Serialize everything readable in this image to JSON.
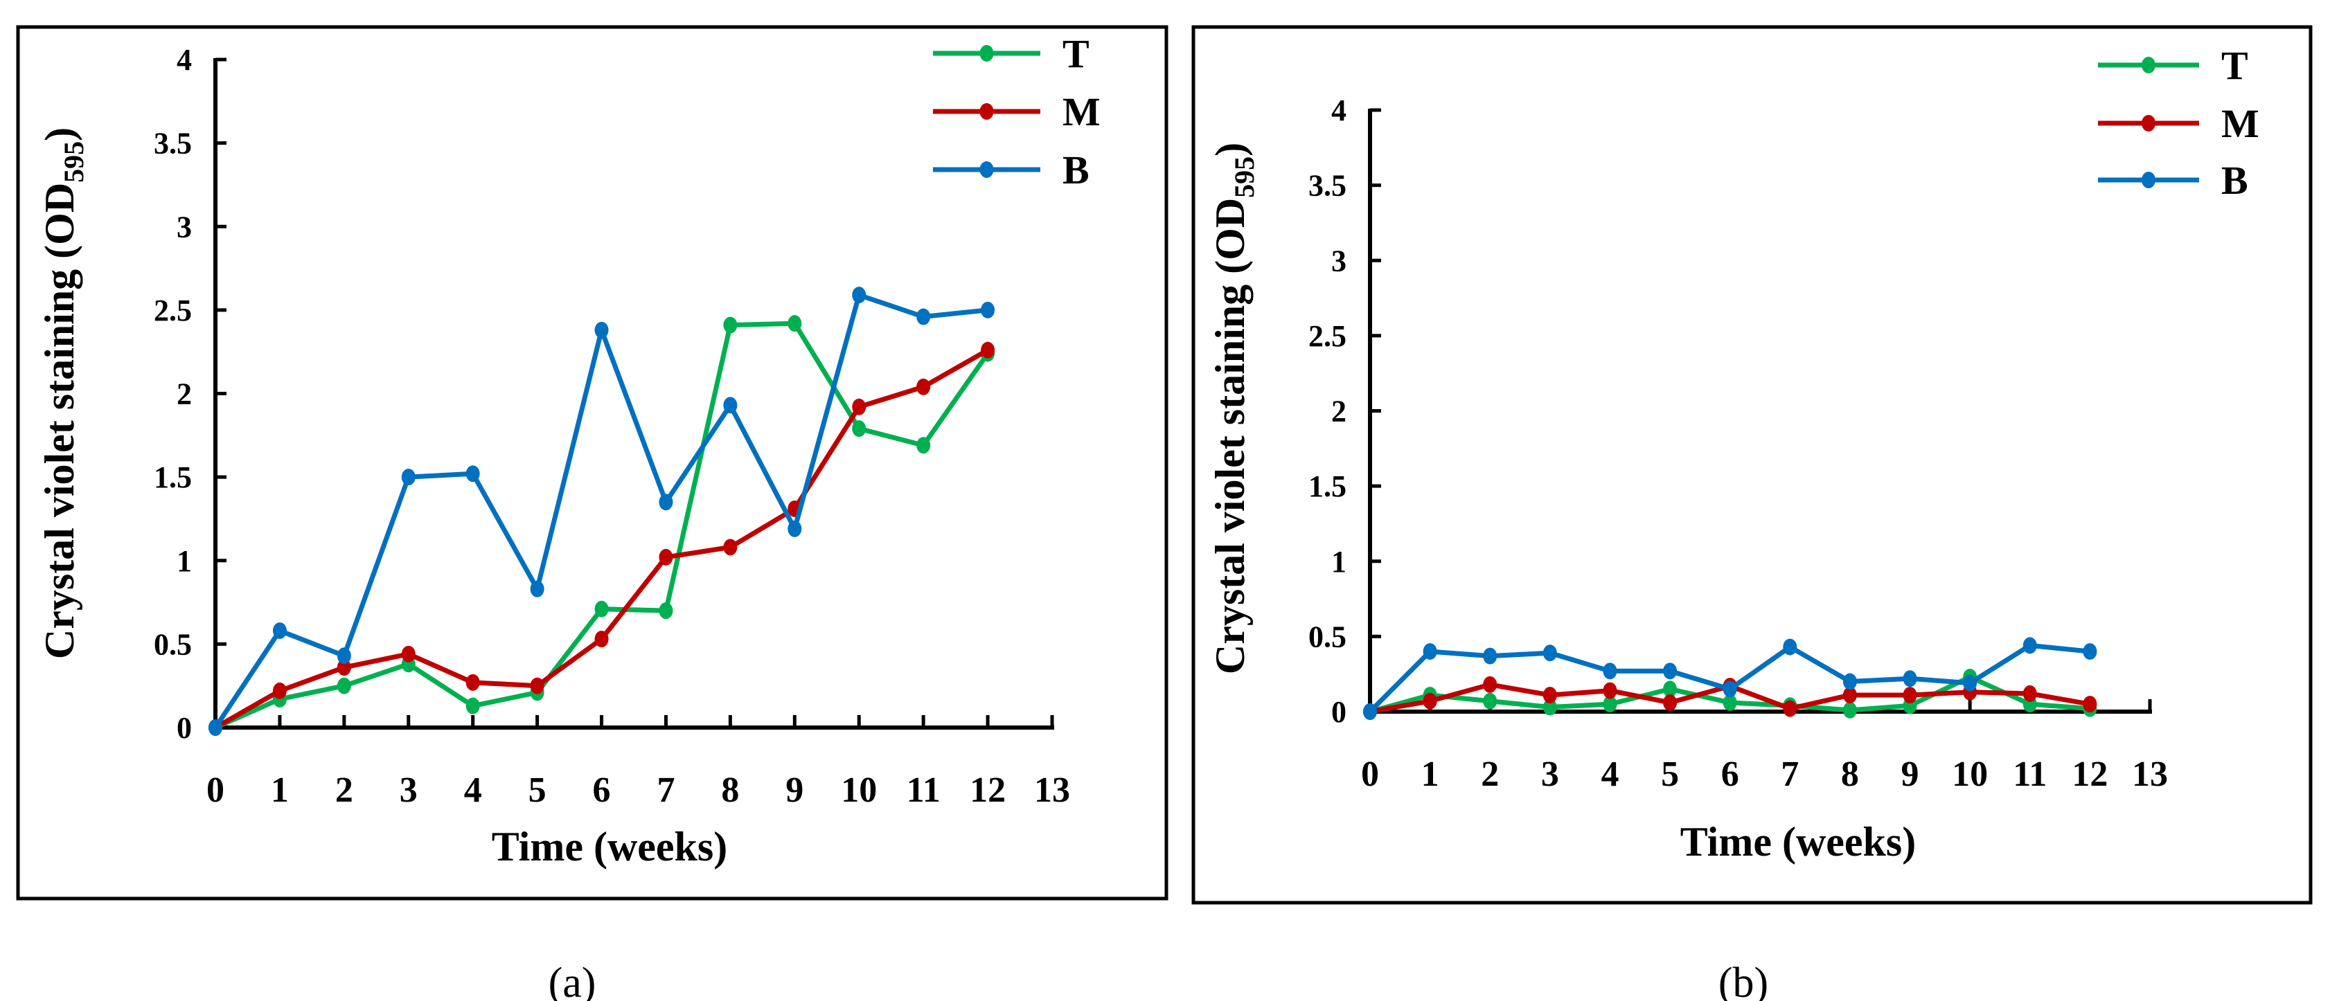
{
  "chart_data": [
    {
      "type": "line",
      "caption": "(a)",
      "xlabel": "Time (weeks)",
      "ylabel_main": "Crystal violet staining (OD",
      "ylabel_sub": "595",
      "ylabel_end": ")",
      "xlim": [
        0,
        13
      ],
      "ylim": [
        0,
        4
      ],
      "x_ticks": [
        "0",
        "1",
        "2",
        "3",
        "4",
        "5",
        "6",
        "7",
        "8",
        "9",
        "10",
        "11",
        "12",
        "13"
      ],
      "y_ticks": [
        "0",
        "0.5",
        "1",
        "1.5",
        "2",
        "2.5",
        "3",
        "3.5",
        "4"
      ],
      "legend_position": "top-right",
      "x": [
        0,
        1,
        2,
        3,
        4,
        5,
        6,
        7,
        8,
        9,
        10,
        11,
        12
      ],
      "series": [
        {
          "name": "T",
          "color": "#00B050",
          "values": [
            0,
            0.17,
            0.25,
            0.38,
            0.13,
            0.21,
            0.71,
            0.7,
            2.41,
            2.42,
            1.79,
            1.69,
            2.24
          ]
        },
        {
          "name": "M",
          "color": "#C00000",
          "values": [
            0,
            0.22,
            0.36,
            0.44,
            0.27,
            0.25,
            0.53,
            1.02,
            1.08,
            1.31,
            1.92,
            2.04,
            2.26
          ]
        },
        {
          "name": "B",
          "color": "#0070C0",
          "values": [
            0,
            0.58,
            0.43,
            1.5,
            1.52,
            0.83,
            2.38,
            1.35,
            1.93,
            1.19,
            2.59,
            2.46,
            2.5
          ]
        }
      ]
    },
    {
      "type": "line",
      "caption": "(b)",
      "xlabel": "Time (weeks)",
      "ylabel_main": "Crystal violet staining (OD",
      "ylabel_sub": "595",
      "ylabel_end": ")",
      "xlim": [
        0,
        13
      ],
      "ylim": [
        0,
        4
      ],
      "x_ticks": [
        "0",
        "1",
        "2",
        "3",
        "4",
        "5",
        "6",
        "7",
        "8",
        "9",
        "10",
        "11",
        "12",
        "13"
      ],
      "y_ticks": [
        "0",
        "0.5",
        "1",
        "1.5",
        "2",
        "2.5",
        "3",
        "3.5",
        "4"
      ],
      "legend_position": "top-right",
      "x": [
        0,
        1,
        2,
        3,
        4,
        5,
        6,
        7,
        8,
        9,
        10,
        11,
        12
      ],
      "series": [
        {
          "name": "T",
          "color": "#00B050",
          "values": [
            0,
            0.11,
            0.07,
            0.03,
            0.05,
            0.15,
            0.06,
            0.04,
            0.01,
            0.04,
            0.23,
            0.05,
            0.02
          ]
        },
        {
          "name": "M",
          "color": "#C00000",
          "values": [
            0,
            0.07,
            0.18,
            0.11,
            0.14,
            0.06,
            0.17,
            0.02,
            0.11,
            0.11,
            0.13,
            0.12,
            0.05
          ]
        },
        {
          "name": "B",
          "color": "#0070C0",
          "values": [
            0,
            0.4,
            0.37,
            0.39,
            0.27,
            0.27,
            0.15,
            0.43,
            0.2,
            0.22,
            0.19,
            0.44,
            0.4
          ]
        }
      ]
    }
  ]
}
